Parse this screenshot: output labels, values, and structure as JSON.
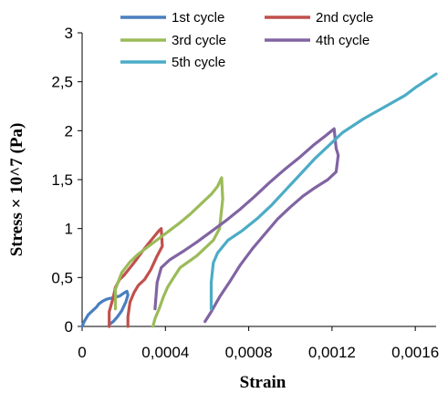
{
  "chart_data": {
    "type": "line",
    "xlabel": "Strain",
    "ylabel": "Stress × 10^7 (Pa)",
    "xlim": [
      0,
      0.0017
    ],
    "ylim": [
      0,
      3
    ],
    "x_ticks": [
      0,
      0.0004,
      0.0008,
      0.0012,
      0.0016
    ],
    "x_tick_labels": [
      "0",
      "0,0004",
      "0,0008",
      "0,0012",
      "0,0016"
    ],
    "y_ticks": [
      0,
      0.5,
      1,
      1.5,
      2,
      2.5,
      3
    ],
    "y_tick_labels": [
      "0",
      "0,5",
      "1",
      "1,5",
      "2",
      "2,5",
      "3"
    ],
    "grid": false,
    "legend_position": "top",
    "series": [
      {
        "name": "1st cycle",
        "color": "#4a7fc0",
        "x": [
          0,
          1e-05,
          3e-05,
          5e-05,
          7e-05,
          8e-05,
          0.0001,
          0.00012,
          0.00014,
          0.00016,
          0.00018,
          0.0002,
          0.000215,
          0.00022,
          0.00021,
          0.00019,
          0.00017,
          0.00015,
          0.00013,
          0.00013
        ],
        "y": [
          0,
          0.05,
          0.12,
          0.16,
          0.2,
          0.23,
          0.26,
          0.28,
          0.29,
          0.3,
          0.31,
          0.34,
          0.36,
          0.32,
          0.25,
          0.16,
          0.1,
          0.05,
          0.02,
          0
        ]
      },
      {
        "name": "2nd cycle",
        "color": "#c0504d",
        "x": [
          0.00013,
          0.00013,
          0.00015,
          0.00016,
          0.00018,
          0.0002,
          0.00023,
          0.00026,
          0.00029,
          0.00032,
          0.00035,
          0.00037,
          0.00038,
          0.000385,
          0.00036,
          0.00033,
          0.0003,
          0.00027,
          0.00025,
          0.00023,
          0.00022,
          0.00022
        ],
        "y": [
          0,
          0.15,
          0.3,
          0.4,
          0.48,
          0.52,
          0.6,
          0.68,
          0.77,
          0.85,
          0.93,
          0.98,
          1.0,
          0.82,
          0.72,
          0.58,
          0.48,
          0.42,
          0.35,
          0.25,
          0.1,
          0
        ]
      },
      {
        "name": "3rd cycle",
        "color": "#9bbb59",
        "x": [
          0.00016,
          0.00016,
          0.00019,
          0.00023,
          0.00027,
          0.00032,
          0.00037,
          0.00042,
          0.00047,
          0.00052,
          0.00057,
          0.00062,
          0.00065,
          0.00067,
          0.000675,
          0.00066,
          0.00063,
          0.00059,
          0.00055,
          0.00051,
          0.00047,
          0.00044,
          0.00041,
          0.00039,
          0.00037,
          0.00035,
          0.00034
        ],
        "y": [
          0.18,
          0.38,
          0.55,
          0.66,
          0.74,
          0.82,
          0.9,
          0.98,
          1.06,
          1.15,
          1.25,
          1.35,
          1.43,
          1.52,
          1.3,
          1.0,
          0.88,
          0.8,
          0.72,
          0.66,
          0.6,
          0.5,
          0.4,
          0.3,
          0.18,
          0.08,
          0
        ]
      },
      {
        "name": "4th cycle",
        "color": "#8064a2",
        "x": [
          0.00035,
          0.00036,
          0.00038,
          0.00042,
          0.00048,
          0.00055,
          0.00062,
          0.00069,
          0.00076,
          0.00083,
          0.0009,
          0.00097,
          0.00104,
          0.00111,
          0.00117,
          0.00121,
          0.00122,
          0.00123,
          0.00122,
          0.00118,
          0.00112,
          0.00106,
          0.001,
          0.00094,
          0.00088,
          0.00082,
          0.00076,
          0.00071,
          0.00066,
          0.00062,
          0.00059
        ],
        "y": [
          0.18,
          0.45,
          0.6,
          0.68,
          0.76,
          0.86,
          0.97,
          1.08,
          1.2,
          1.33,
          1.47,
          1.6,
          1.72,
          1.85,
          1.95,
          2.02,
          1.82,
          1.75,
          1.58,
          1.5,
          1.42,
          1.33,
          1.22,
          1.1,
          0.95,
          0.8,
          0.63,
          0.46,
          0.3,
          0.15,
          0.05
        ]
      },
      {
        "name": "5th cycle",
        "color": "#4bacc6",
        "x": [
          0.00062,
          0.00062,
          0.00063,
          0.00065,
          0.0007,
          0.00077,
          0.00084,
          0.00091,
          0.00098,
          0.00105,
          0.00112,
          0.00119,
          0.00125,
          0.0013,
          0.00135,
          0.0014,
          0.00145,
          0.0015,
          0.00155,
          0.0016,
          0.00165,
          0.0017
        ],
        "y": [
          0.18,
          0.45,
          0.65,
          0.75,
          0.88,
          0.98,
          1.1,
          1.24,
          1.4,
          1.56,
          1.72,
          1.86,
          1.98,
          2.05,
          2.12,
          2.18,
          2.24,
          2.3,
          2.36,
          2.44,
          2.51,
          2.58
        ]
      }
    ]
  }
}
